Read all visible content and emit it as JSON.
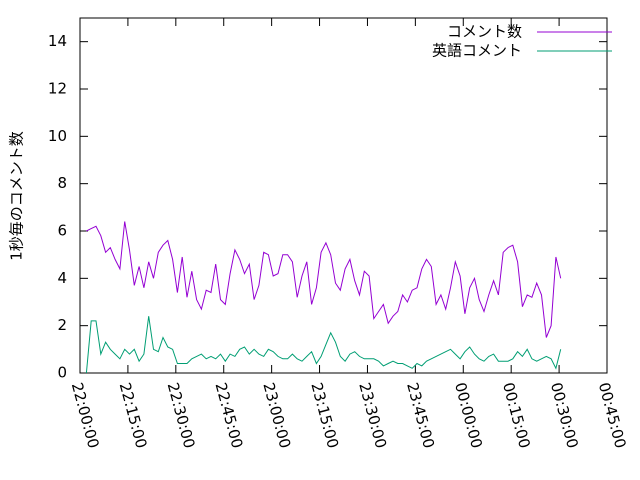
{
  "chart_data": {
    "type": "line",
    "ylabel": "1秒毎のコメント数",
    "x": [
      2,
      3.5,
      5,
      6.5,
      8,
      9.5,
      11,
      12.5,
      14,
      15.5,
      17,
      18.5,
      20,
      21.5,
      23,
      24.5,
      26,
      27.5,
      29,
      30.5,
      32,
      33.5,
      35,
      36.5,
      38,
      39.5,
      41,
      42.5,
      44,
      45.5,
      47,
      48.5,
      50,
      51.5,
      53,
      54.5,
      56,
      57.5,
      59,
      60.5,
      62,
      63.5,
      65,
      66.5,
      68,
      69.5,
      71,
      72.5,
      74,
      75.5,
      77,
      78.5,
      80,
      81.5,
      83,
      84.5,
      86,
      87.5,
      89,
      90.5,
      92,
      93.5,
      95,
      96.5,
      98,
      99.5,
      101,
      102.5,
      104,
      105.5,
      107,
      108.5,
      110,
      111.5,
      113,
      114.5,
      116,
      117.5,
      119,
      120.5,
      122,
      123.5,
      125,
      126.5,
      128,
      129.5,
      131,
      132.5,
      134,
      135.5,
      137,
      138.5,
      140,
      141.5,
      143,
      144.5,
      146,
      147.5,
      149,
      150.5
    ],
    "series": [
      {
        "name": "コメント数",
        "color": "#9400d3",
        "values": [
          6.0,
          6.1,
          6.2,
          5.8,
          5.1,
          5.3,
          4.8,
          4.4,
          6.4,
          5.2,
          3.7,
          4.5,
          3.6,
          4.7,
          4.0,
          5.1,
          5.4,
          5.6,
          4.8,
          3.4,
          4.9,
          3.2,
          4.3,
          3.1,
          2.7,
          3.5,
          3.4,
          4.6,
          3.1,
          2.9,
          4.2,
          5.2,
          4.8,
          4.2,
          4.6,
          3.1,
          3.7,
          5.1,
          5.0,
          4.1,
          4.2,
          5.0,
          5.0,
          4.7,
          3.2,
          4.1,
          4.7,
          2.9,
          3.6,
          5.1,
          5.5,
          5.0,
          3.8,
          3.5,
          4.4,
          4.8,
          3.9,
          3.3,
          4.3,
          4.1,
          2.3,
          2.6,
          2.9,
          2.1,
          2.4,
          2.6,
          3.3,
          3.0,
          3.5,
          3.6,
          4.4,
          4.8,
          4.5,
          2.9,
          3.3,
          2.7,
          3.6,
          4.7,
          4.1,
          2.5,
          3.6,
          4.0,
          3.1,
          2.6,
          3.3,
          3.9,
          3.3,
          5.1,
          5.3,
          5.4,
          4.7,
          2.8,
          3.3,
          3.2,
          3.8,
          3.3,
          1.5,
          2.0,
          4.9,
          4.0
        ]
      },
      {
        "name": "英語コメント",
        "color": "#009e73",
        "values": [
          0,
          2.2,
          2.2,
          0.8,
          1.3,
          1.0,
          0.8,
          0.6,
          1.0,
          0.8,
          1.0,
          0.5,
          0.8,
          2.4,
          1.0,
          0.9,
          1.5,
          1.1,
          1.0,
          0.4,
          0.4,
          0.4,
          0.6,
          0.7,
          0.8,
          0.6,
          0.7,
          0.6,
          0.8,
          0.5,
          0.8,
          0.7,
          1.0,
          1.1,
          0.8,
          1.0,
          0.8,
          0.7,
          1.0,
          0.9,
          0.7,
          0.6,
          0.6,
          0.8,
          0.6,
          0.5,
          0.7,
          0.9,
          0.4,
          0.7,
          1.2,
          1.7,
          1.3,
          0.7,
          0.5,
          0.8,
          0.9,
          0.7,
          0.6,
          0.6,
          0.6,
          0.5,
          0.3,
          0.4,
          0.5,
          0.4,
          0.4,
          0.3,
          0.2,
          0.4,
          0.3,
          0.5,
          0.6,
          0.7,
          0.8,
          0.9,
          1.0,
          0.8,
          0.6,
          0.9,
          1.1,
          0.8,
          0.6,
          0.5,
          0.7,
          0.8,
          0.5,
          0.5,
          0.5,
          0.6,
          0.9,
          0.7,
          1.0,
          0.6,
          0.5,
          0.6,
          0.7,
          0.6,
          0.2,
          1.0
        ]
      }
    ],
    "xlim": [
      0,
      165
    ],
    "xticks": [
      {
        "value": 0,
        "label": "22:00:00"
      },
      {
        "value": 15,
        "label": "22:15:00"
      },
      {
        "value": 30,
        "label": "22:30:00"
      },
      {
        "value": 45,
        "label": "22:45:00"
      },
      {
        "value": 60,
        "label": "23:00:00"
      },
      {
        "value": 75,
        "label": "23:15:00"
      },
      {
        "value": 90,
        "label": "23:30:00"
      },
      {
        "value": 105,
        "label": "23:45:00"
      },
      {
        "value": 120,
        "label": "00:00:00"
      },
      {
        "value": 135,
        "label": "00:15:00"
      },
      {
        "value": 150,
        "label": "00:30:00"
      },
      {
        "value": 165,
        "label": "00:45:00"
      }
    ],
    "ylim": [
      0,
      15
    ],
    "yticks": [
      0,
      2,
      4,
      6,
      8,
      10,
      12,
      14
    ],
    "legend": "top-right"
  }
}
